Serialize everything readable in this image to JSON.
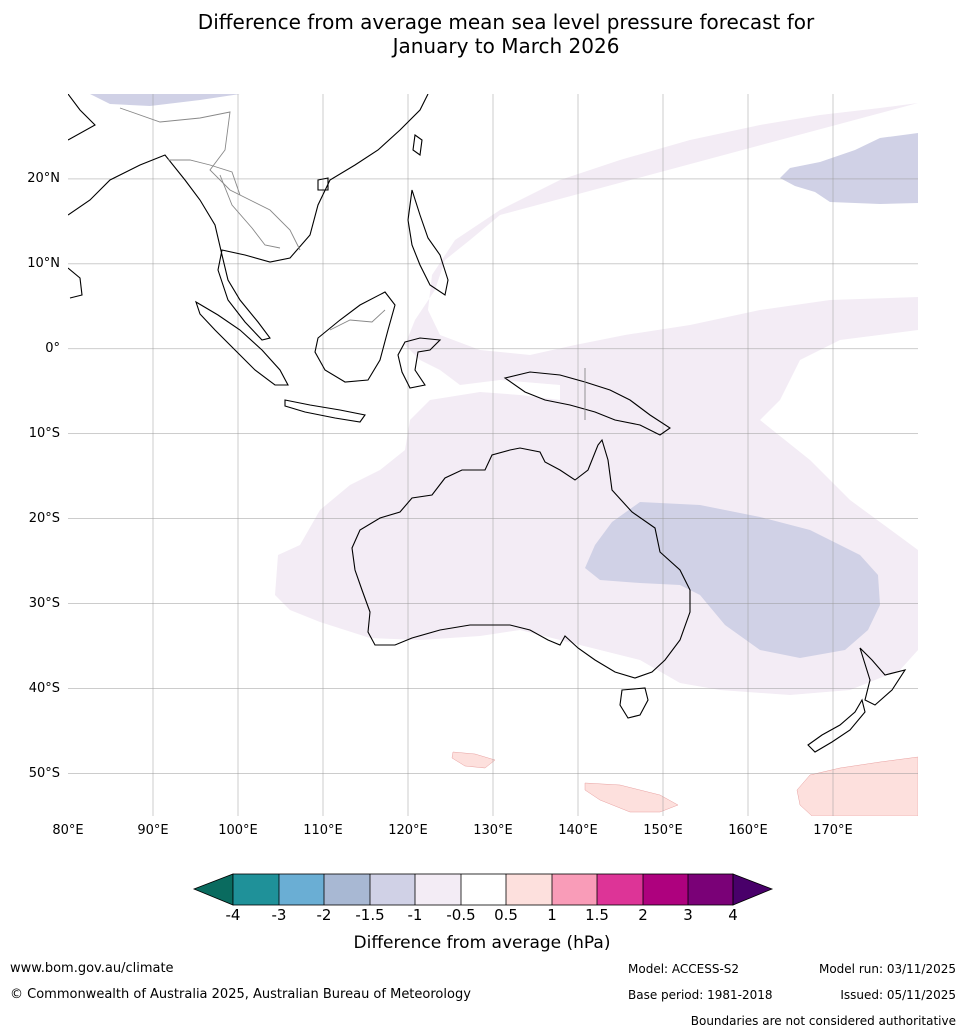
{
  "title": {
    "line1": "Difference from average mean sea level pressure forecast for",
    "line2": "January to March 2026"
  },
  "map": {
    "lat_ticks": [
      "20°N",
      "10°N",
      "0°",
      "10°S",
      "20°S",
      "30°S",
      "40°S",
      "50°S"
    ],
    "lon_ticks": [
      "80°E",
      "90°E",
      "100°E",
      "110°E",
      "120°E",
      "130°E",
      "140°E",
      "150°E",
      "160°E",
      "170°E"
    ],
    "extent": {
      "lon_min": 80,
      "lon_max": 180,
      "lat_min": -55,
      "lat_max": 30
    },
    "regions": [
      {
        "name": "weak-negative-anomaly-area",
        "category": "-1 to -0.5"
      },
      {
        "name": "moderate-negative-anomaly-eastern-australia",
        "category": "-1.5 to -1"
      },
      {
        "name": "moderate-negative-anomaly-north-pacific",
        "category": "-1.5 to -1"
      },
      {
        "name": "positive-anomaly-southern-ocean",
        "category": "0.5 to 1"
      }
    ]
  },
  "colorbar": {
    "labels": [
      "-4",
      "-3",
      "-2",
      "-1.5",
      "-1",
      "-0.5",
      "0.5",
      "1",
      "1.5",
      "2",
      "3",
      "4"
    ],
    "colors": [
      "#0a6b5f",
      "#1f9199",
      "#6aaed4",
      "#a8b8d3",
      "#d0d1e6",
      "#f3ecf5",
      "#ffffff",
      "#fde0dd",
      "#f99cb8",
      "#dd3497",
      "#ae017e",
      "#7a0177",
      "#49006a"
    ],
    "title": "Difference from average (hPa)"
  },
  "footer": {
    "website": "www.bom.gov.au/climate",
    "copyright": "© Commonwealth of Australia 2025, Australian Bureau of Meteorology",
    "model": "Model: ACCESS-S2",
    "base_period": "Base period: 1981-2018",
    "model_run": "Model run: 03/11/2025",
    "issued": "Issued: 05/11/2025",
    "disclaimer": "Boundaries are not considered authoritative"
  }
}
